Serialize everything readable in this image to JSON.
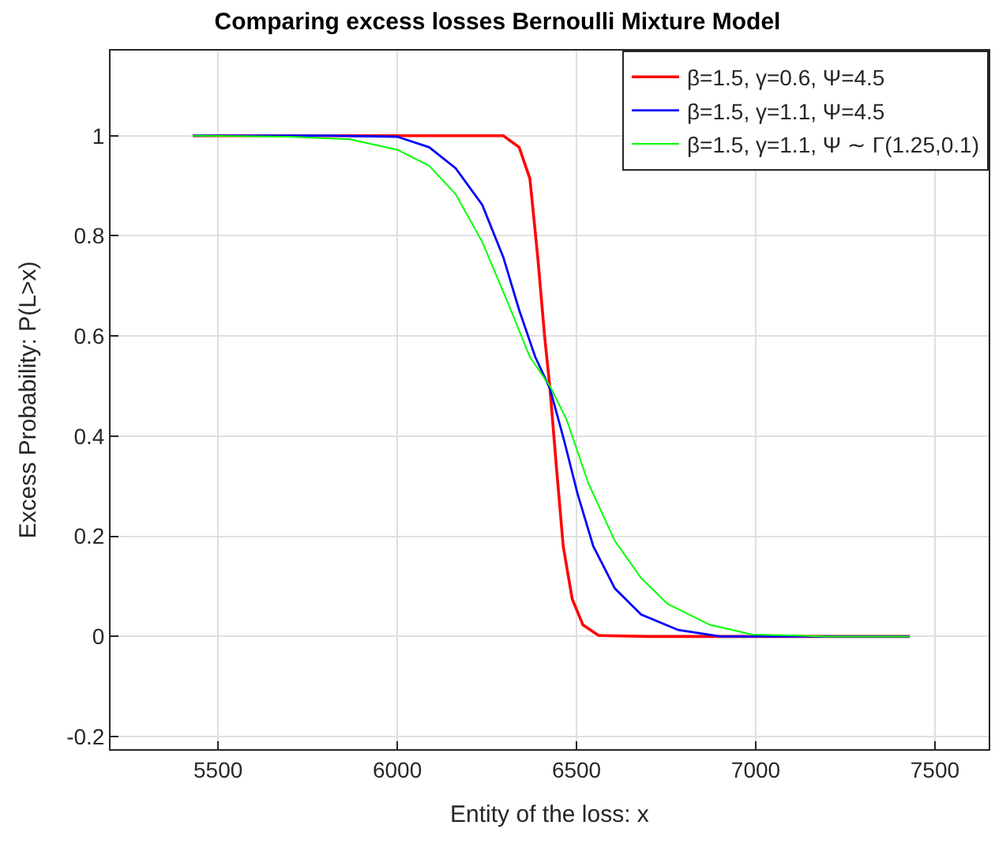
{
  "chart_data": {
    "type": "line",
    "title": "Comparing excess losses Bernoulli Mixture Model",
    "xlabel": "Entity of the loss: x",
    "ylabel": "Excess Probability: P(L>x)",
    "xlim": [
      5200,
      7650
    ],
    "ylim": [
      -0.225,
      1.17
    ],
    "xticks": [
      5500,
      6000,
      6500,
      7000,
      7500
    ],
    "yticks": [
      -0.2,
      0,
      0.2,
      0.4,
      0.6,
      0.8,
      1
    ],
    "grid": true,
    "legend": "top right",
    "marker": "none",
    "line_style": "solid",
    "series": [
      {
        "name": "β=1.5, γ=0.6, Ψ=4.5",
        "color": "#ff0000",
        "x": [
          5430,
          6000,
          6296,
          6340,
          6370,
          6392,
          6411,
          6426,
          6444,
          6463,
          6488,
          6518,
          6562,
          6700,
          7430
        ],
        "values": [
          1,
          1,
          1,
          0.977,
          0.914,
          0.757,
          0.6,
          0.495,
          0.338,
          0.18,
          0.075,
          0.023,
          0.002,
          0,
          0
        ]
      },
      {
        "name": "β=1.5, γ=1.1, Ψ=4.5",
        "color": "#0000ff",
        "x": [
          5430,
          5800,
          6000,
          6089,
          6163,
          6237,
          6296,
          6340,
          6385,
          6426,
          6466,
          6503,
          6547,
          6607,
          6680,
          6784,
          6902,
          7430
        ],
        "values": [
          1,
          1,
          0.998,
          0.977,
          0.935,
          0.862,
          0.757,
          0.652,
          0.558,
          0.495,
          0.39,
          0.285,
          0.18,
          0.096,
          0.044,
          0.013,
          0,
          0
        ]
      },
      {
        "name": "β=1.5, γ=1.1, Ψ ∼ Γ(1.25,0.1)",
        "color": "#00ff00",
        "x": [
          5430,
          5700,
          5867,
          6000,
          6089,
          6163,
          6237,
          6311,
          6370,
          6426,
          6473,
          6533,
          6607,
          6680,
          6754,
          6873,
          6991,
          7200,
          7430
        ],
        "values": [
          1,
          0.998,
          0.993,
          0.972,
          0.94,
          0.883,
          0.788,
          0.662,
          0.558,
          0.5,
          0.432,
          0.306,
          0.191,
          0.117,
          0.065,
          0.023,
          0.004,
          0,
          0
        ]
      }
    ]
  }
}
